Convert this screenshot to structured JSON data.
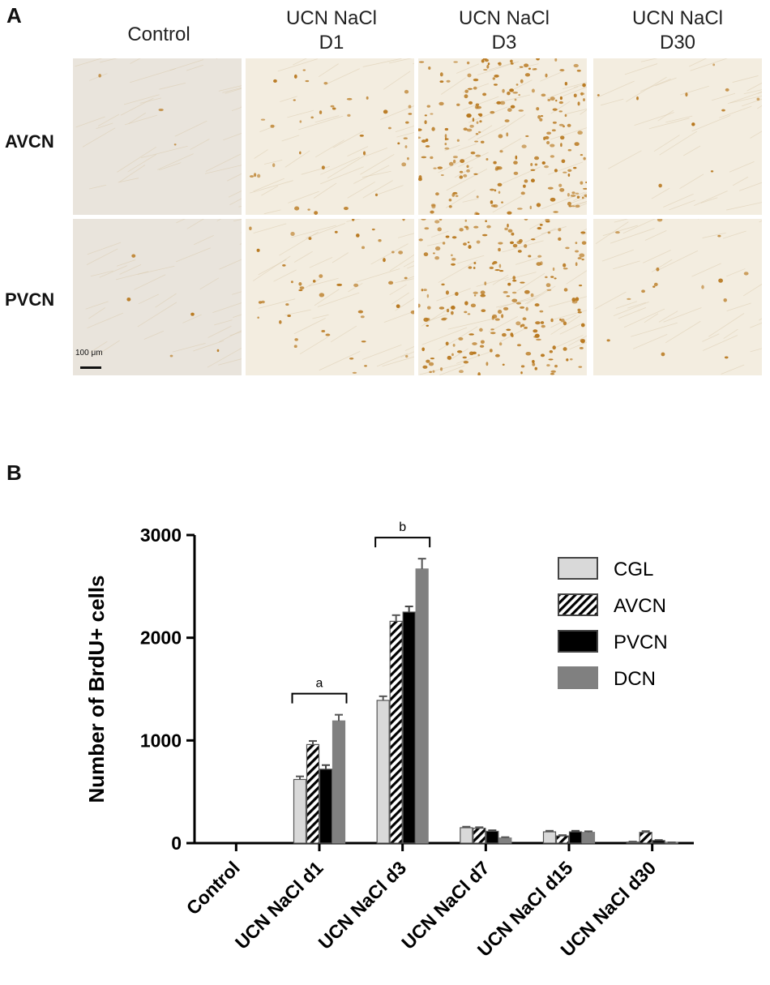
{
  "panel_a": {
    "letter": "A",
    "columns": [
      {
        "line1": "Control",
        "line2": ""
      },
      {
        "line1": "UCN NaCl",
        "line2": "D1"
      },
      {
        "line1": "UCN NaCl",
        "line2": "D3"
      },
      {
        "line1": "UCN NaCl",
        "line2": "D30"
      }
    ],
    "rows": [
      "AVCN",
      "PVCN"
    ],
    "scale_bar_label": "100 μm",
    "tissue_colors": {
      "background": "#f3ede0",
      "stain": "#b8781e"
    },
    "cell_density_per_panel": [
      [
        3,
        40,
        220,
        10
      ],
      [
        5,
        45,
        210,
        15
      ]
    ]
  },
  "panel_b": {
    "letter": "B"
  },
  "chart_data": {
    "type": "bar",
    "ylabel": "Number of BrdU+ cells",
    "xlabel": "",
    "ylim": [
      0,
      3000
    ],
    "yticks": [
      0,
      1000,
      2000,
      3000
    ],
    "categories": [
      "Control",
      "UCN NaCl d1",
      "UCN NaCl d3",
      "UCN NaCl d7",
      "UCN NaCl d15",
      "UCN NaCl d30"
    ],
    "series": [
      {
        "name": "CGL",
        "fill": "#d9d9d9",
        "pattern": "solid",
        "values": [
          0,
          620,
          1390,
          150,
          110,
          10
        ],
        "errors": [
          0,
          30,
          40,
          10,
          10,
          5
        ]
      },
      {
        "name": "AVCN",
        "fill": "#ffffff",
        "pattern": "hatch",
        "values": [
          0,
          960,
          2160,
          145,
          70,
          105
        ],
        "errors": [
          0,
          35,
          60,
          10,
          8,
          12
        ]
      },
      {
        "name": "PVCN",
        "fill": "#000000",
        "pattern": "solid",
        "values": [
          0,
          720,
          2250,
          115,
          110,
          25
        ],
        "errors": [
          0,
          40,
          55,
          10,
          10,
          5
        ]
      },
      {
        "name": "DCN",
        "fill": "#808080",
        "pattern": "solid",
        "values": [
          0,
          1190,
          2670,
          50,
          105,
          5
        ],
        "errors": [
          0,
          60,
          100,
          8,
          10,
          3
        ]
      }
    ],
    "annotations": [
      {
        "text": "a",
        "category": "UCN NaCl d1"
      },
      {
        "text": "b",
        "category": "UCN NaCl d3"
      }
    ],
    "legend": "top-right",
    "grid": false
  }
}
